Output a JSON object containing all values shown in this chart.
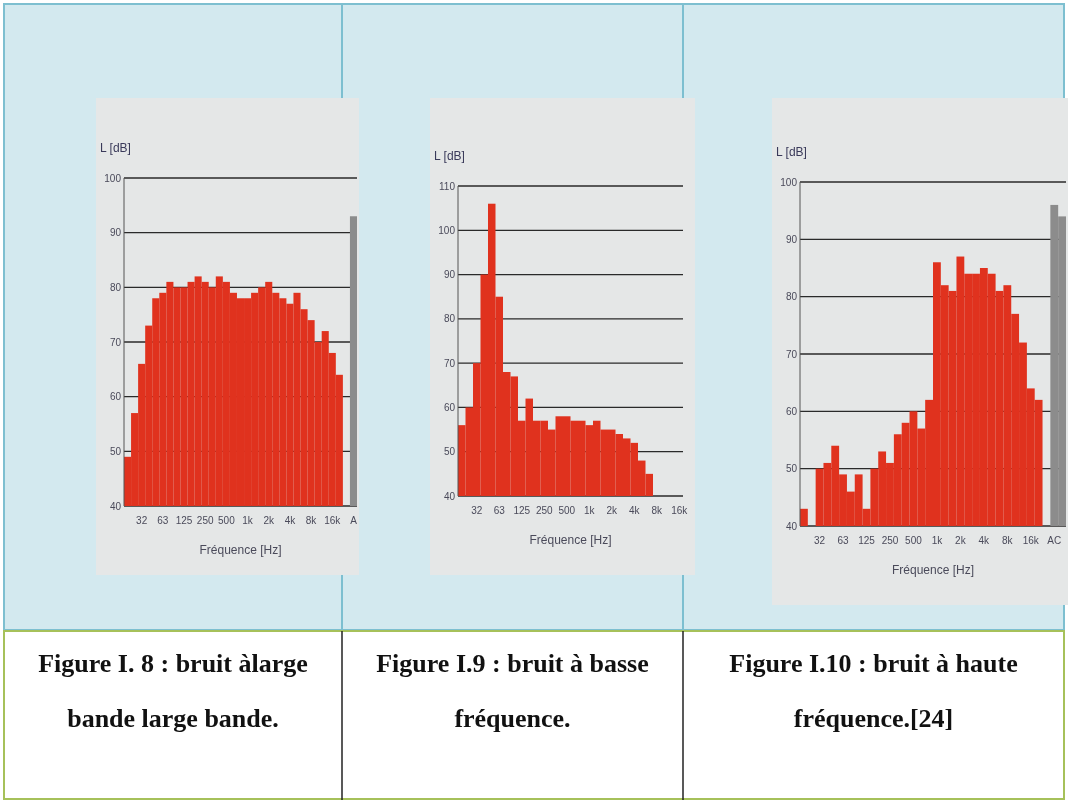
{
  "chart_data": [
    {
      "type": "bar",
      "ylabel": "L [dB]",
      "xlabel": "Fréquence [Hz]",
      "annotations": [
        "Figure I. 8 : bruit àlarge bande large bande."
      ],
      "categories": [
        null,
        null,
        "32",
        null,
        null,
        "63",
        null,
        null,
        "125",
        null,
        null,
        "250",
        null,
        null,
        "500",
        null,
        null,
        "1k",
        null,
        null,
        "2k",
        null,
        null,
        "4k",
        null,
        null,
        "8k",
        null,
        null,
        "16k",
        null,
        null,
        "A"
      ],
      "values": [
        49,
        57,
        66,
        73,
        78,
        79,
        81,
        80,
        80,
        81,
        82,
        81,
        80,
        82,
        81,
        79,
        78,
        78,
        79,
        80,
        81,
        79,
        78,
        77,
        79,
        76,
        74,
        70,
        72,
        68,
        64,
        null,
        93
      ],
      "colors": [
        "#e0321e",
        "#e0321e",
        "#e0321e",
        "#e0321e",
        "#e0321e",
        "#e0321e",
        "#e0321e",
        "#e0321e",
        "#e0321e",
        "#e0321e",
        "#e0321e",
        "#e0321e",
        "#e0321e",
        "#e0321e",
        "#e0321e",
        "#e0321e",
        "#e0321e",
        "#e0321e",
        "#e0321e",
        "#e0321e",
        "#e0321e",
        "#e0321e",
        "#e0321e",
        "#e0321e",
        "#e0321e",
        "#e0321e",
        "#e0321e",
        "#e0321e",
        "#e0321e",
        "#e0321e",
        "#e0321e",
        null,
        "#8c8c8c"
      ],
      "ylim": [
        40,
        100
      ],
      "yticks": [
        40,
        50,
        60,
        70,
        80,
        90,
        100
      ],
      "grid": "y"
    },
    {
      "type": "bar",
      "ylabel": "L [dB]",
      "xlabel": "Fréquence [Hz]",
      "annotations": [
        "Figure I.9 : bruit à basse fréquence."
      ],
      "categories": [
        null,
        null,
        "32",
        null,
        null,
        "63",
        null,
        null,
        "125",
        null,
        null,
        "250",
        null,
        null,
        "500",
        null,
        null,
        "1k",
        null,
        null,
        "2k",
        null,
        null,
        "4k",
        null,
        null,
        "8k",
        null,
        null,
        "16k"
      ],
      "values": [
        56,
        60,
        70,
        90,
        106,
        85,
        68,
        67,
        57,
        62,
        57,
        57,
        55,
        58,
        58,
        57,
        57,
        56,
        57,
        55,
        55,
        54,
        53,
        52,
        48,
        45,
        null,
        null,
        null,
        null
      ],
      "color": "#e0321e",
      "ylim": [
        40,
        110
      ],
      "yticks": [
        40,
        50,
        60,
        70,
        80,
        90,
        100,
        110
      ],
      "grid": "y"
    },
    {
      "type": "bar",
      "ylabel": "L [dB]",
      "xlabel": "Fréquence [Hz]",
      "annotations": [
        "Figure I.10 : bruit à haute fréquence.[24]"
      ],
      "categories": [
        null,
        null,
        "32",
        null,
        null,
        "63",
        null,
        null,
        "125",
        null,
        null,
        "250",
        null,
        null,
        "500",
        null,
        null,
        "1k",
        null,
        null,
        "2k",
        null,
        null,
        "4k",
        null,
        null,
        "8k",
        null,
        null,
        "16k",
        null,
        null,
        "AC",
        null
      ],
      "values": [
        43,
        null,
        50,
        51,
        54,
        49,
        46,
        49,
        43,
        50,
        53,
        51,
        56,
        58,
        60,
        57,
        62,
        86,
        82,
        81,
        87,
        84,
        84,
        85,
        84,
        81,
        82,
        77,
        72,
        64,
        62,
        null,
        96,
        94
      ],
      "colors": [
        "#e0321e",
        null,
        "#e0321e",
        "#e0321e",
        "#e0321e",
        "#e0321e",
        "#e0321e",
        "#e0321e",
        "#e0321e",
        "#e0321e",
        "#e0321e",
        "#e0321e",
        "#e0321e",
        "#e0321e",
        "#e0321e",
        "#e0321e",
        "#e0321e",
        "#e0321e",
        "#e0321e",
        "#e0321e",
        "#e0321e",
        "#e0321e",
        "#e0321e",
        "#e0321e",
        "#e0321e",
        "#e0321e",
        "#e0321e",
        "#e0321e",
        "#e0321e",
        "#e0321e",
        "#e0321e",
        null,
        "#8c8c8c",
        "#8c8c8c"
      ],
      "ylim": [
        40,
        100
      ],
      "yticks": [
        40,
        50,
        60,
        70,
        80,
        90,
        100
      ],
      "grid": "y"
    }
  ]
}
